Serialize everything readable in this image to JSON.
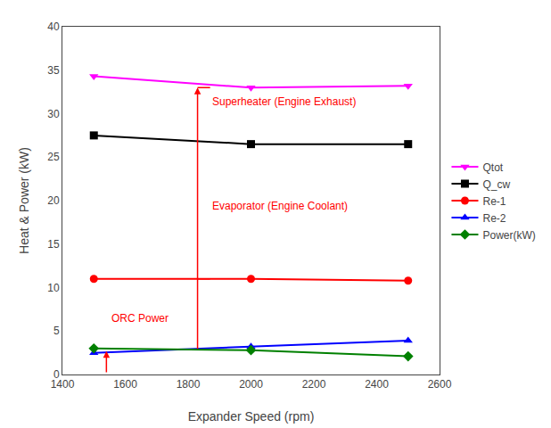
{
  "chart_data": {
    "type": "line",
    "x": [
      1500,
      2000,
      2500
    ],
    "series": [
      {
        "name": "Qtot",
        "color": "#FF00FF",
        "marker": "triangle-down",
        "line_style": "solid",
        "values": [
          34.3,
          33.0,
          33.2
        ]
      },
      {
        "name": "Q_cw",
        "color": "#000000",
        "marker": "square",
        "line_style": "solid",
        "values": [
          27.5,
          26.5,
          26.5
        ]
      },
      {
        "name": "Re-1",
        "color": "#FF0000",
        "marker": "circle",
        "line_style": "solid",
        "values": [
          11.0,
          11.0,
          10.8
        ]
      },
      {
        "name": "Re-2",
        "color": "#0000FF",
        "marker": "triangle-up",
        "line_style": "solid",
        "values": [
          2.5,
          3.2,
          3.9
        ]
      },
      {
        "name": "Power(kW)",
        "color": "#008000",
        "marker": "diamond",
        "line_style": "solid",
        "values": [
          3.0,
          2.8,
          2.1
        ]
      }
    ],
    "xlabel": "Expander Speed (rpm)",
    "ylabel": "Heat & Power (kW)",
    "xlim": [
      1400,
      2600
    ],
    "ylim": [
      0,
      40
    ],
    "xticks": [
      1400,
      1600,
      1800,
      2000,
      2200,
      2400,
      2600
    ],
    "yticks": [
      0,
      5,
      10,
      15,
      20,
      25,
      30,
      35,
      40
    ],
    "grid": false,
    "legend": "right",
    "annotations": [
      {
        "text": "Superheater (Engine Exhaust)",
        "x": 1870,
        "y": 30.5,
        "color": "#FF0000"
      },
      {
        "text": "Evaporator (Engine Coolant)",
        "x": 1870,
        "y": 18.5,
        "color": "#FF0000"
      },
      {
        "text": "ORC Power",
        "x": 1550,
        "y": 5.5,
        "color": "#FF0000"
      }
    ],
    "arrows": [
      {
        "from": [
          1830,
          2.8
        ],
        "to": [
          1830,
          33.0
        ],
        "head": true,
        "color": "#FF0000"
      },
      {
        "from": [
          1870,
          33.0
        ],
        "to": [
          1830,
          33.0
        ],
        "head": false,
        "color": "#FF0000"
      },
      {
        "from": [
          1870,
          11.0
        ],
        "to": [
          1830,
          11.0
        ],
        "head": false,
        "color": "#FF0000"
      },
      {
        "from": [
          1540,
          0.1
        ],
        "to": [
          1540,
          2.7
        ],
        "head": true,
        "color": "#FF0000"
      }
    ]
  }
}
